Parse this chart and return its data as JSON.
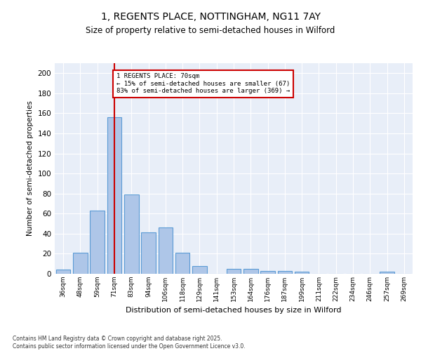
{
  "title_line1": "1, REGENTS PLACE, NOTTINGHAM, NG11 7AY",
  "title_line2": "Size of property relative to semi-detached houses in Wilford",
  "xlabel": "Distribution of semi-detached houses by size in Wilford",
  "ylabel": "Number of semi-detached properties",
  "categories": [
    "36sqm",
    "48sqm",
    "59sqm",
    "71sqm",
    "83sqm",
    "94sqm",
    "106sqm",
    "118sqm",
    "129sqm",
    "141sqm",
    "153sqm",
    "164sqm",
    "176sqm",
    "187sqm",
    "199sqm",
    "211sqm",
    "222sqm",
    "234sqm",
    "246sqm",
    "257sqm",
    "269sqm"
  ],
  "values": [
    4,
    21,
    63,
    156,
    79,
    41,
    46,
    21,
    8,
    0,
    5,
    5,
    3,
    3,
    2,
    0,
    0,
    0,
    0,
    2,
    0
  ],
  "bar_color": "#aec6e8",
  "bar_edge_color": "#5b9bd5",
  "vline_x_index": 3,
  "vline_color": "#cc0000",
  "annotation_title": "1 REGENTS PLACE: 70sqm",
  "annotation_line1": "← 15% of semi-detached houses are smaller (67)",
  "annotation_line2": "83% of semi-detached houses are larger (369) →",
  "annotation_box_color": "#cc0000",
  "ylim": [
    0,
    210
  ],
  "yticks": [
    0,
    20,
    40,
    60,
    80,
    100,
    120,
    140,
    160,
    180,
    200
  ],
  "background_color": "#e8eef8",
  "footer_line1": "Contains HM Land Registry data © Crown copyright and database right 2025.",
  "footer_line2": "Contains public sector information licensed under the Open Government Licence v3.0."
}
